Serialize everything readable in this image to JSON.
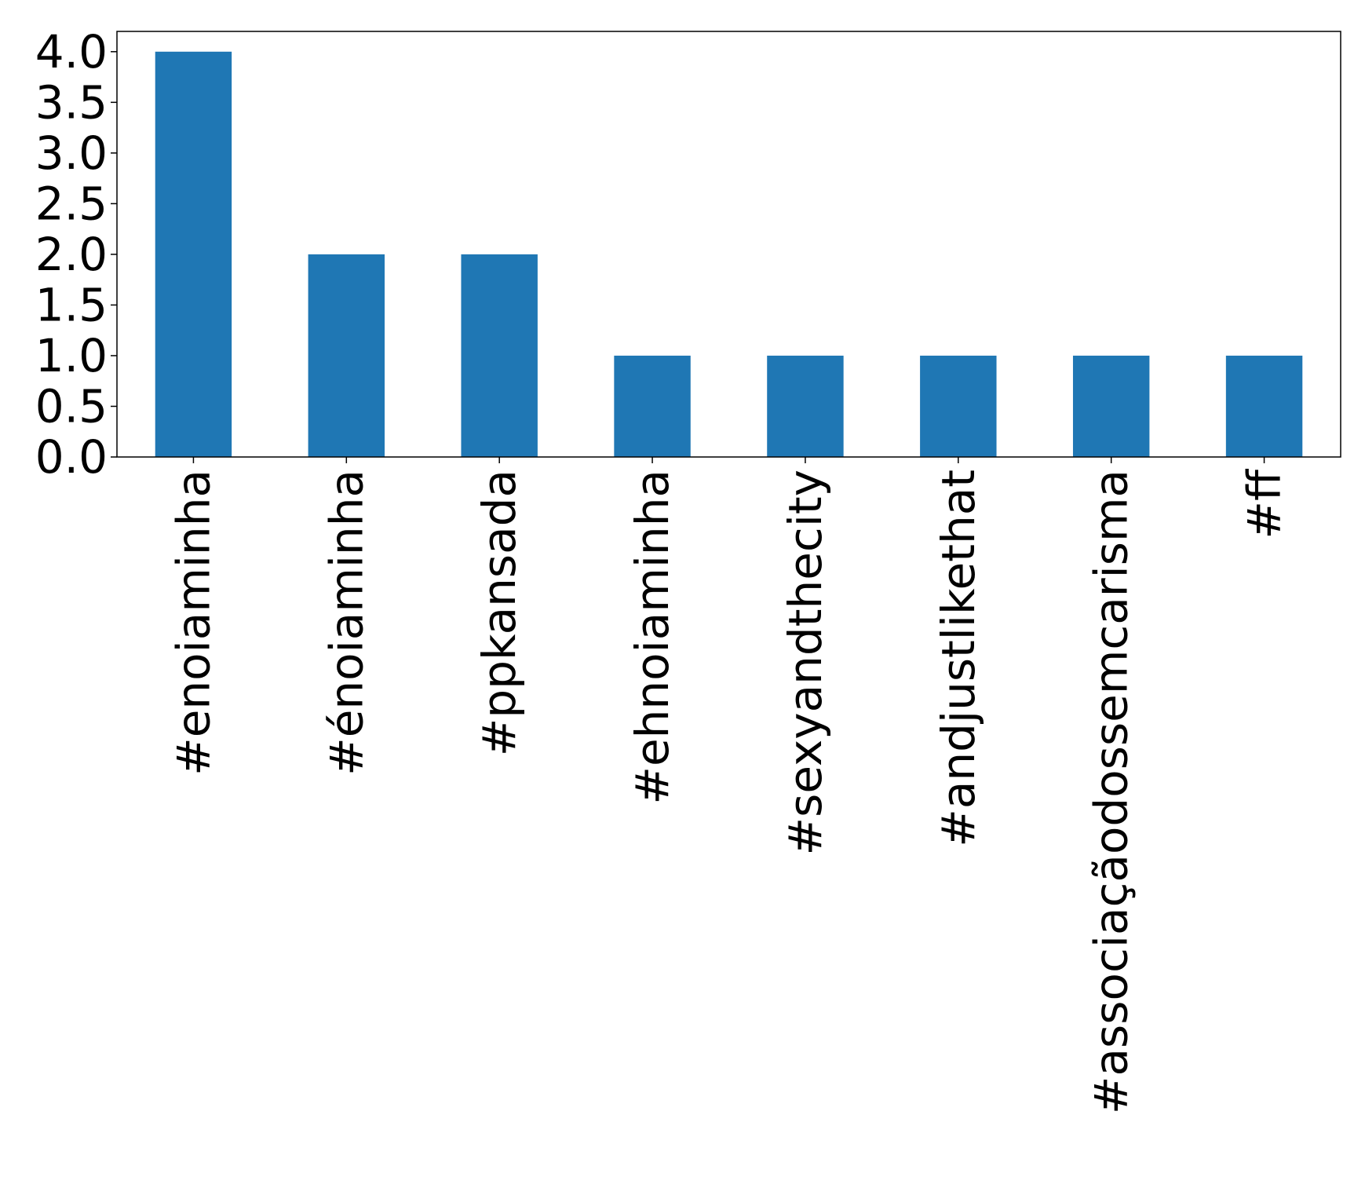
{
  "chart_data": {
    "type": "bar",
    "categories": [
      "#enoiaminha",
      "#énoiaminha",
      "#ppkansada",
      "#ehnoiaminha",
      "#sexyandthecity",
      "#andjustlikethat",
      "#associaçãodossemcarisma",
      "#ff"
    ],
    "values": [
      4,
      2,
      2,
      1,
      1,
      1,
      1,
      1
    ],
    "color": "#1f77b4",
    "ylim": [
      0,
      4.2
    ],
    "yticks": [
      {
        "value": 0,
        "label": "0.0"
      },
      {
        "value": 0.5,
        "label": "0.5"
      },
      {
        "value": 1,
        "label": "1.0"
      },
      {
        "value": 1.5,
        "label": "1.5"
      },
      {
        "value": 2,
        "label": "2.0"
      },
      {
        "value": 2.5,
        "label": "2.5"
      },
      {
        "value": 3,
        "label": "3.0"
      },
      {
        "value": 3.5,
        "label": "3.5"
      },
      {
        "value": 4,
        "label": "4.0"
      }
    ],
    "grid": false
  }
}
